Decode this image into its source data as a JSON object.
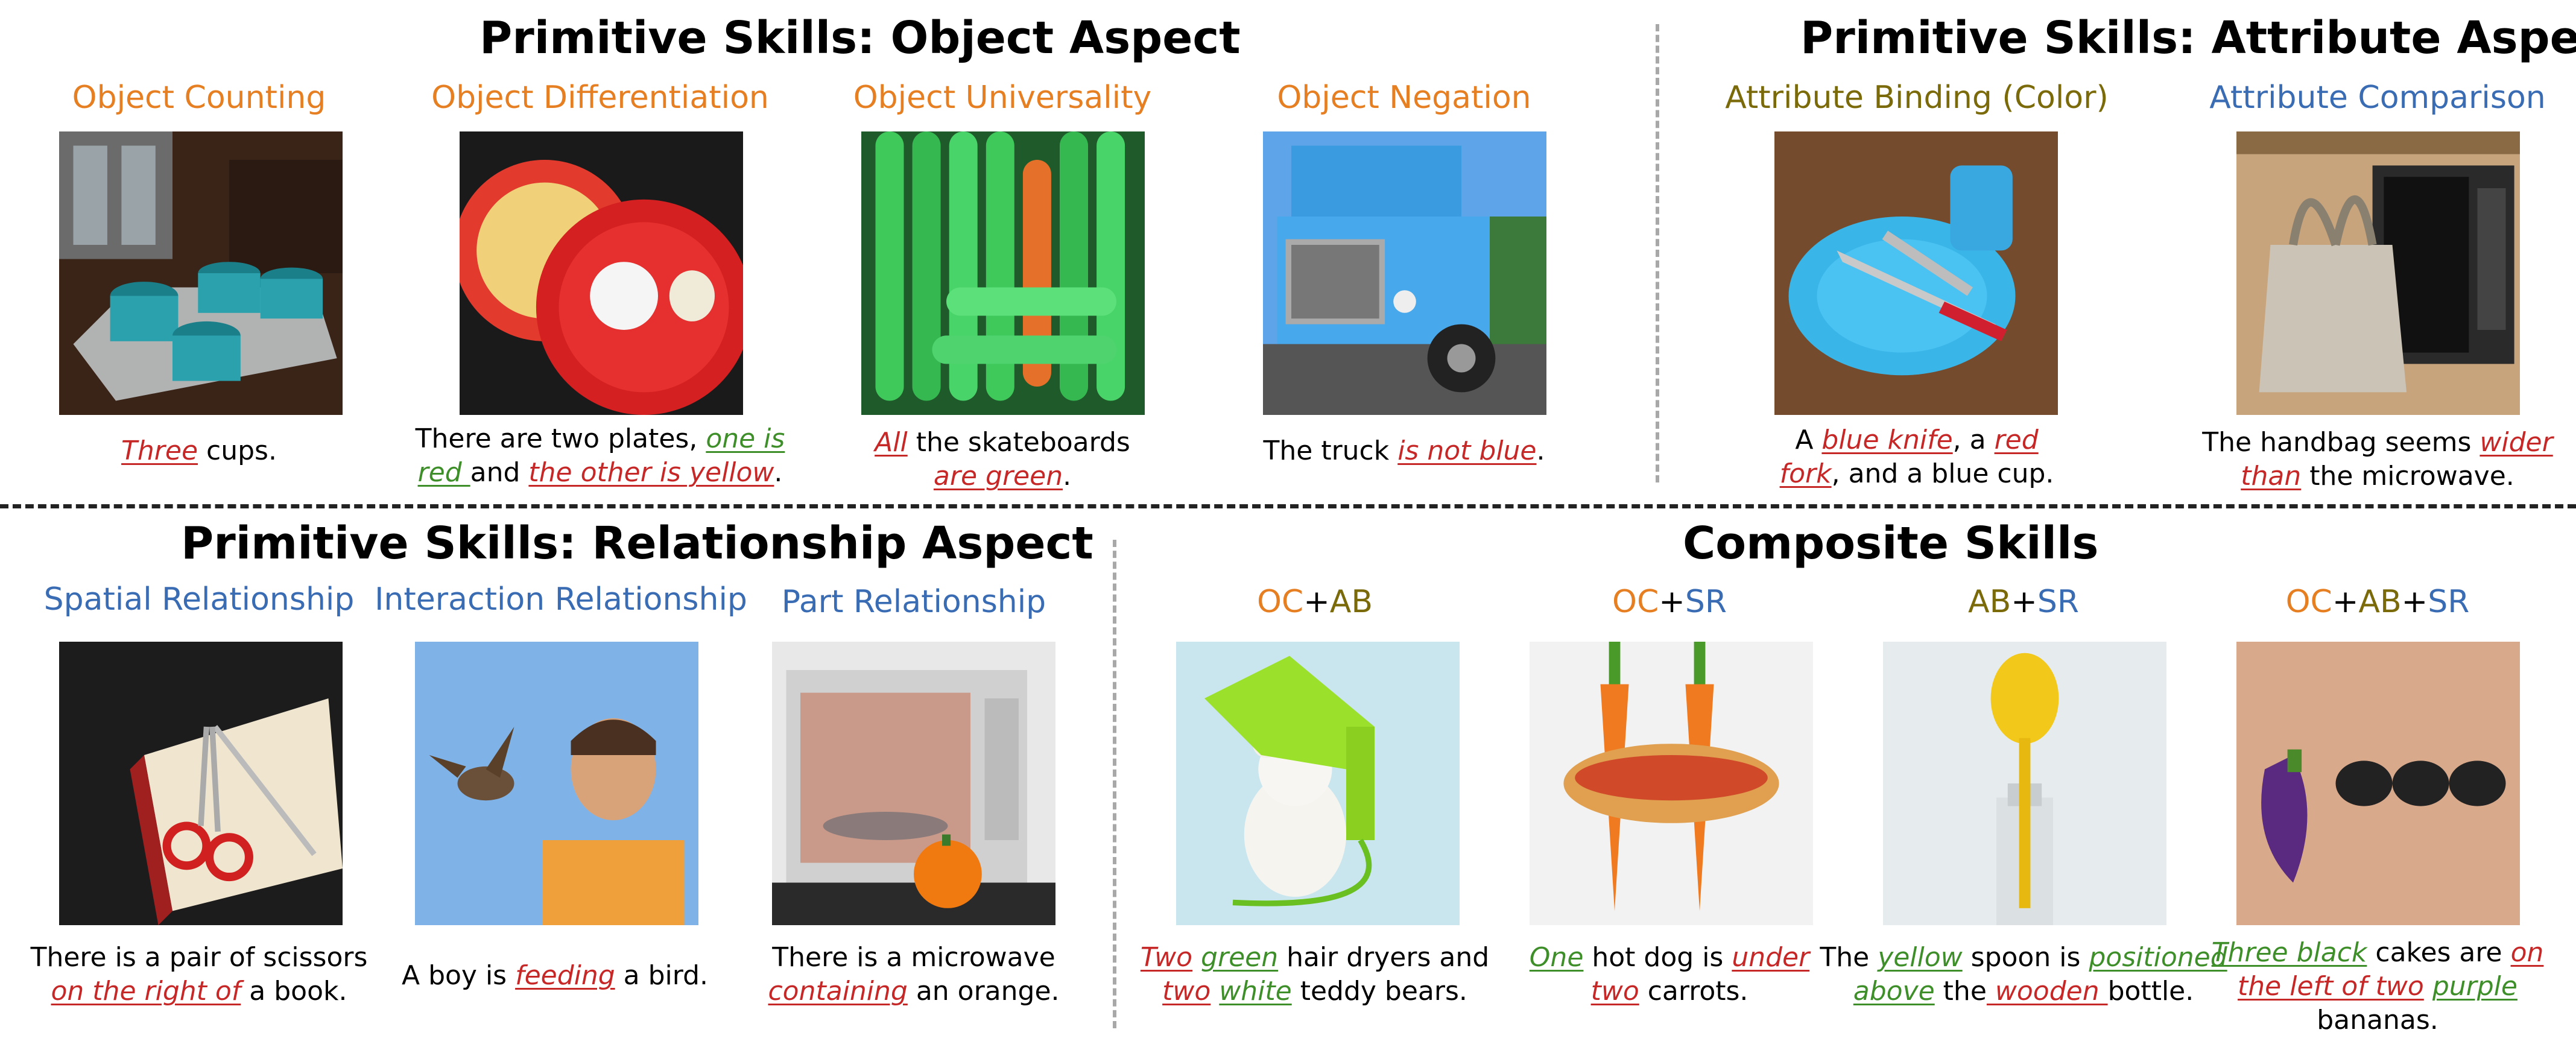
{
  "sections": {
    "object": "Primitive Skills: Object Aspect",
    "attribute": "Primitive Skills: Attribute Aspect",
    "relationship": "Primitive Skills: Relationship Aspect",
    "composite": "Composite Skills"
  },
  "skills": {
    "obj_counting": "Object Counting",
    "obj_diff": "Object Differentiation",
    "obj_univ": "Object Universality",
    "obj_neg": "Object Negation",
    "attr_bind": "Attribute Binding (Color)",
    "attr_comp": "Attribute Comparison",
    "rel_spatial": "Spatial Relationship",
    "rel_inter": "Interaction Relationship",
    "rel_part": "Part Relationship"
  },
  "combos": {
    "oc": "OC",
    "ab": "AB",
    "sr": "SR",
    "plus": "+"
  },
  "captions": {
    "c1": {
      "a": "Three",
      "b": " cups."
    },
    "c2": {
      "l1a": "There are two plates, ",
      "l1b": "one is",
      "l2a": "red ",
      "l2b": "and ",
      "l2c": "the other is yellow",
      "l2d": "."
    },
    "c3": {
      "l1a": "All",
      "l1b": " the skateboards",
      "l2a": "are green",
      "l2b": "."
    },
    "c4": {
      "a": "The truck ",
      "b": "is not blue",
      "c": "."
    },
    "c5": {
      "l1a": "A ",
      "l1b": "blue knife",
      "l1c": ", a ",
      "l1d": "red",
      "l2a": "fork",
      "l2b": ", and a blue cup."
    },
    "c6": {
      "l1a": "The handbag seems ",
      "l1b": "wider",
      "l2a": "than",
      "l2b": " the microwave."
    },
    "c7": {
      "l1": "There is a pair of scissors",
      "l2a": "on the right of",
      "l2b": " a book."
    },
    "c8": {
      "a": "A boy is ",
      "b": "feeding",
      "c": " a bird."
    },
    "c9": {
      "l1": "There is a microwave",
      "l2a": "containing",
      "l2b": " an orange."
    },
    "c10": {
      "l1a": "Two",
      "l1b": " ",
      "l1c": "green",
      "l1d": " hair dryers and",
      "l2a": "two",
      "l2b": " ",
      "l2c": "white",
      "l2d": " teddy bears."
    },
    "c11": {
      "l1a": "One",
      "l1b": " hot dog is ",
      "l1c": "under",
      "l2a": "two",
      "l2b": " carrots."
    },
    "c12": {
      "l1a": "The ",
      "l1b": "yellow",
      "l1c": " spoon is ",
      "l1d": "positioned",
      "l2a": "above",
      "l2b": " the",
      "l2c": " wooden ",
      "l2d": "bottle."
    },
    "c13": {
      "l1a": "Three black",
      "l1b": " cakes are ",
      "l1c": "on",
      "l2a": "the left of two",
      "l2b": " ",
      "l2c": "purple",
      "l3": "bananas."
    }
  },
  "colors": {
    "orange": "#e67e22",
    "olive": "#7a6a0a",
    "blue": "#3a6cb4",
    "green": "#3e8e2a",
    "red": "#c62828"
  },
  "icons": [
    "cups-photo",
    "plates-photo",
    "skateboards-photo",
    "truck-photo",
    "plate-knife-photo",
    "handbag-photo",
    "scissors-book-photo",
    "boy-bird-photo",
    "microwave-orange-photo",
    "hairdryer-teddy-photo",
    "hotdog-carrots-photo",
    "spoon-bottle-photo",
    "eggplant-cakes-photo"
  ]
}
